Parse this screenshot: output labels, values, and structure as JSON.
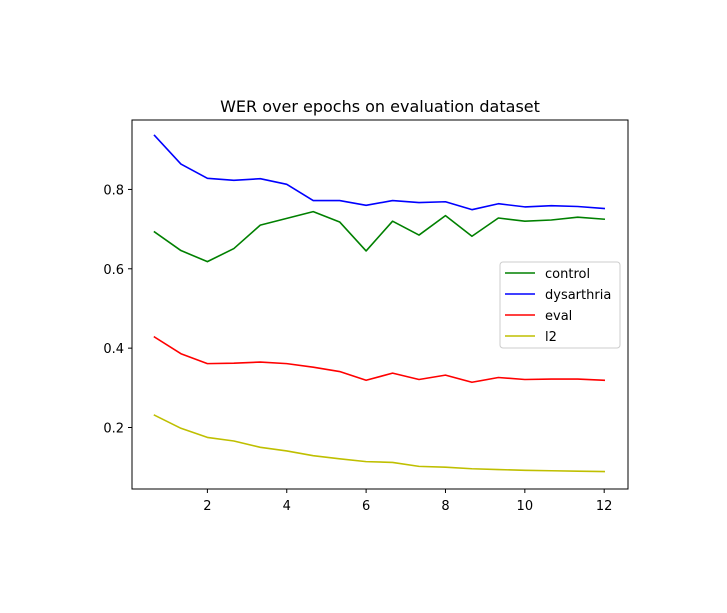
{
  "chart_data": {
    "type": "line",
    "title": "WER over epochs on evaluation dataset",
    "xlabel": "",
    "ylabel": "",
    "xlim": [
      0.1,
      12.6
    ],
    "ylim": [
      0.045,
      0.975
    ],
    "xticks": [
      2,
      4,
      6,
      8,
      10,
      12
    ],
    "yticks": [
      0.2,
      0.4,
      0.6,
      0.8
    ],
    "xtick_labels": [
      "2",
      "4",
      "6",
      "8",
      "10",
      "12"
    ],
    "ytick_labels": [
      "0.2",
      "0.4",
      "0.6",
      "0.8"
    ],
    "grid": false,
    "legend_position": "center-right",
    "x": [
      0.667,
      1.333,
      2.0,
      2.667,
      3.333,
      4.0,
      4.667,
      5.333,
      6.0,
      6.667,
      7.333,
      8.0,
      8.667,
      9.333,
      10.0,
      10.667,
      11.333,
      12.0
    ],
    "series": [
      {
        "name": "control",
        "color": "#008000",
        "values": [
          0.693,
          0.646,
          0.618,
          0.651,
          0.71,
          0.727,
          0.744,
          0.718,
          0.645,
          0.72,
          0.685,
          0.734,
          0.682,
          0.728,
          0.72,
          0.723,
          0.73,
          0.725
        ]
      },
      {
        "name": "dysarthria",
        "color": "#0000ff",
        "values": [
          0.936,
          0.864,
          0.828,
          0.823,
          0.827,
          0.813,
          0.772,
          0.772,
          0.76,
          0.772,
          0.767,
          0.769,
          0.749,
          0.764,
          0.756,
          0.759,
          0.757,
          0.752
        ]
      },
      {
        "name": "eval",
        "color": "#ff0000",
        "values": [
          0.428,
          0.386,
          0.361,
          0.362,
          0.365,
          0.361,
          0.352,
          0.341,
          0.319,
          0.337,
          0.321,
          0.332,
          0.314,
          0.326,
          0.321,
          0.322,
          0.322,
          0.319
        ]
      },
      {
        "name": "l2",
        "color": "#bfbf00",
        "values": [
          0.231,
          0.198,
          0.175,
          0.166,
          0.15,
          0.141,
          0.129,
          0.121,
          0.114,
          0.112,
          0.102,
          0.1,
          0.096,
          0.094,
          0.092,
          0.091,
          0.09,
          0.089
        ]
      }
    ]
  }
}
